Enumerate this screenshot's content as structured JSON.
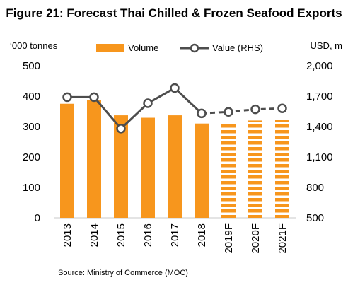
{
  "chart_data": {
    "type": "bar",
    "title": "Figure 21: Forecast Thai Chilled & Frozen Seafood Exports",
    "left_axis_label": "‘000 tonnes",
    "right_axis_label": "USD, m",
    "categories": [
      "2013",
      "2014",
      "2015",
      "2016",
      "2017",
      "2018",
      "2019F",
      "2020F",
      "2021F"
    ],
    "forecast_categories": [
      "2019F",
      "2020F",
      "2021F"
    ],
    "series": [
      {
        "name": "Volume",
        "type": "bar",
        "axis": "left",
        "color": "#F7961D",
        "values": [
          375,
          387,
          337,
          329,
          337,
          310,
          310,
          320,
          323
        ]
      },
      {
        "name": "Value (RHS)",
        "type": "line",
        "axis": "right",
        "color": "#4D4D4D",
        "values": [
          1690,
          1690,
          1380,
          1630,
          1780,
          1530,
          1545,
          1570,
          1580
        ]
      }
    ],
    "ylim_left": [
      0,
      500
    ],
    "yticks_left": [
      "0",
      "100",
      "200",
      "300",
      "400",
      "500"
    ],
    "ylim_right": [
      500,
      2000
    ],
    "yticks_right": [
      "500",
      "800",
      "1,100",
      "1,400",
      "1,700",
      "2,000"
    ],
    "legend_position": "top",
    "grid": false,
    "source": "Source: Ministry of Commerce (MOC)"
  }
}
